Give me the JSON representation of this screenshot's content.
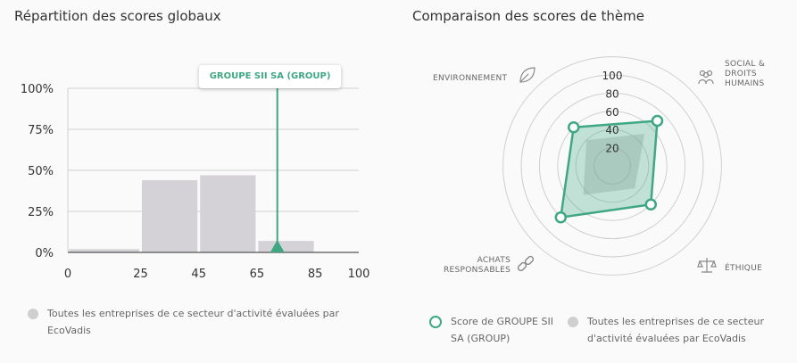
{
  "left_panel": {
    "title": "Répartition des scores globaux",
    "callout_label": "GROUPE SII SA (GROUP)",
    "legend_text": "Toutes les entreprises de ce secteur d'activité évaluées par EcoVadis"
  },
  "right_panel": {
    "title": "Comparaison des scores de thème",
    "labels": {
      "environment": "ENVIRONNEMENT",
      "social": [
        "SOCIAL &",
        "DROITS",
        "HUMAINS"
      ],
      "ethics": "ÉTHIQUE",
      "purchasing": [
        "ACHATS",
        "RESPONSABLES"
      ]
    },
    "legend_company": "Score de GROUPE SII SA (GROUP)",
    "legend_sector": "Toutes les entreprises de ce secteur d'activité évaluées par EcoVadis"
  },
  "colors": {
    "accent": "#3fa883",
    "bar_grey": "#d4d2d6",
    "grid": "#cccccc"
  },
  "chart_data": [
    {
      "type": "bar",
      "title": "Répartition des scores globaux",
      "bins": [
        [
          0,
          25
        ],
        [
          25,
          45
        ],
        [
          45,
          65
        ],
        [
          65,
          85
        ],
        [
          85,
          100
        ]
      ],
      "values": [
        2,
        44,
        47,
        7,
        0
      ],
      "x_ticks": [
        "0",
        "25",
        "45",
        "65",
        "85",
        "100"
      ],
      "y_ticks": [
        "0%",
        "25%",
        "50%",
        "75%",
        "100%"
      ],
      "ylim": [
        0,
        100
      ],
      "marker": {
        "label": "GROUPE SII SA (GROUP)",
        "x": 72
      },
      "grid": true
    },
    {
      "type": "radar",
      "title": "Comparaison des scores de thème",
      "axes": [
        "ENVIRONNEMENT",
        "SOCIAL & DROITS HUMAINS",
        "ÉTHIQUE",
        "ACHATS RESPONSABLES"
      ],
      "rlim": [
        0,
        100
      ],
      "r_ticks": [
        "20",
        "40",
        "60",
        "80",
        "100"
      ],
      "series": [
        {
          "name": "Score de GROUPE SII SA (GROUP)",
          "values": [
            60,
            70,
            60,
            80
          ]
        },
        {
          "name": "Toutes les entreprises de ce secteur d'activité évaluées par EcoVadis",
          "values": [
            40,
            50,
            35,
            45
          ]
        }
      ]
    }
  ]
}
